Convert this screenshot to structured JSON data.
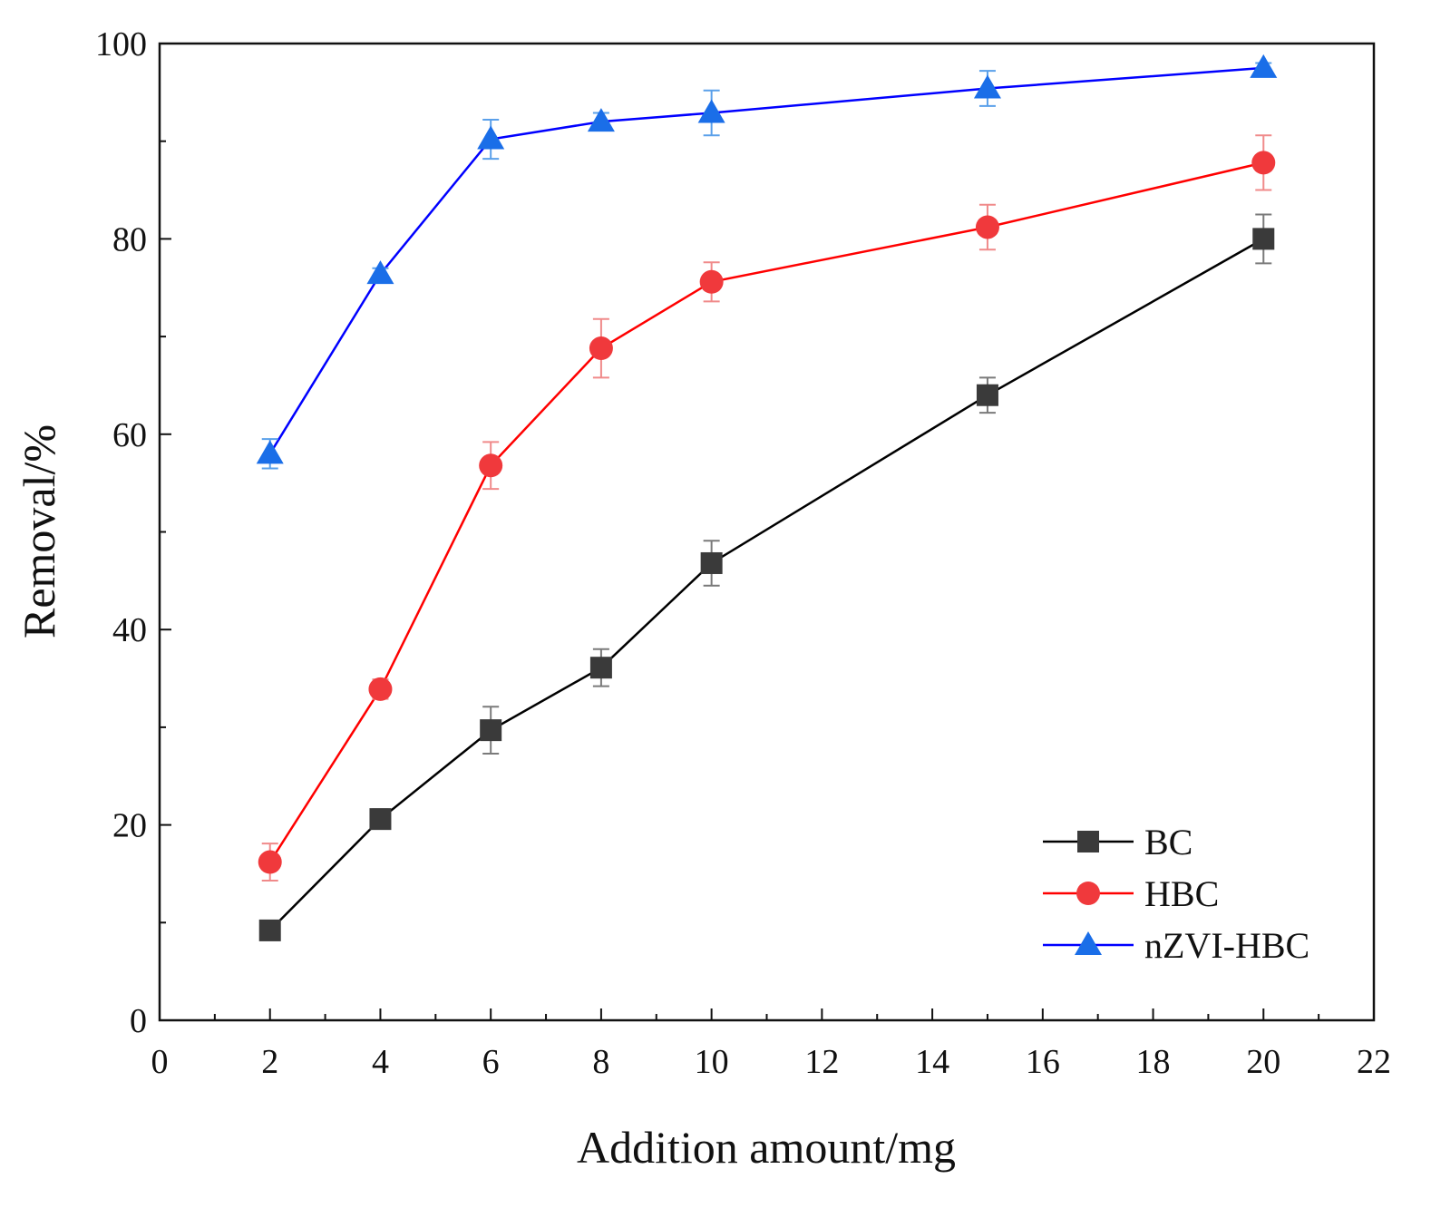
{
  "chart_data": {
    "type": "line",
    "title": "",
    "xlabel": "Addition amount/mg",
    "ylabel": "Removal/%",
    "xlim": [
      0,
      22
    ],
    "ylim": [
      0,
      100
    ],
    "xticks": [
      0,
      2,
      4,
      6,
      8,
      10,
      12,
      14,
      16,
      18,
      20,
      22
    ],
    "yticks": [
      0,
      20,
      40,
      60,
      80,
      100
    ],
    "xtick_labels": [
      "0",
      "2",
      "4",
      "6",
      "8",
      "10",
      "12",
      "14",
      "16",
      "18",
      "20",
      "22"
    ],
    "ytick_labels": [
      "0",
      "20",
      "40",
      "60",
      "80",
      "100"
    ],
    "x": [
      2,
      4,
      6,
      8,
      10,
      15,
      20
    ],
    "legend_position": "bottom-right",
    "grid": false,
    "series": [
      {
        "name": "BC",
        "color": "#000000",
        "marker_color": "#3a3a3a",
        "error_color": "#7a7a7a",
        "marker": "square",
        "values": [
          9.2,
          20.6,
          29.7,
          36.1,
          46.8,
          64.0,
          80.0
        ],
        "errors": [
          0.8,
          1.0,
          2.4,
          1.9,
          2.3,
          1.8,
          2.5
        ]
      },
      {
        "name": "HBC",
        "color": "#ff0000",
        "marker_color": "#f0393c",
        "error_color": "#f08a8a",
        "marker": "circle",
        "values": [
          16.2,
          33.9,
          56.8,
          68.8,
          75.6,
          81.2,
          87.8
        ],
        "errors": [
          1.9,
          1.0,
          2.4,
          3.0,
          2.0,
          2.3,
          2.8
        ]
      },
      {
        "name": "nZVI-HBC",
        "color": "#0000ff",
        "marker_color": "#1a6ee8",
        "error_color": "#5aa0ea",
        "marker": "triangle",
        "values": [
          58.0,
          76.4,
          90.2,
          92.0,
          92.9,
          95.4,
          97.5
        ],
        "errors": [
          1.5,
          0.6,
          2.0,
          0.9,
          2.3,
          1.8,
          0.5
        ]
      }
    ]
  }
}
